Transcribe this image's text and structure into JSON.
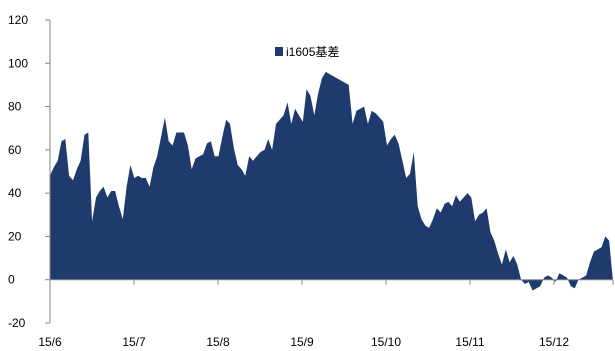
{
  "chart_data": {
    "type": "area",
    "title": "",
    "xlabel": "",
    "ylabel": "",
    "ylim": [
      -20,
      120
    ],
    "y_ticks": [
      "120",
      "100",
      "80",
      "60",
      "40",
      "20",
      "0",
      "-20"
    ],
    "x_ticks": [
      "15/6",
      "15/7",
      "15/8",
      "15/9",
      "15/10",
      "15/11",
      "15/12"
    ],
    "grid": false,
    "legend_position": "top-center",
    "series": [
      {
        "name": "i1605基差",
        "color": "#1f3b6e",
        "values": [
          48,
          52,
          55,
          64,
          65,
          48,
          46,
          51,
          55,
          67,
          68,
          27,
          38,
          41,
          43,
          38,
          41,
          41,
          34,
          28,
          43,
          53,
          47,
          48,
          47,
          47,
          43,
          52,
          57,
          66,
          75,
          64,
          62,
          68,
          68,
          68,
          62,
          51,
          56,
          57,
          58,
          63,
          64,
          57,
          57,
          66,
          74,
          72,
          61,
          53,
          51,
          48,
          57,
          55,
          57,
          59,
          60,
          65,
          60,
          72,
          74,
          76,
          82,
          72,
          79,
          76,
          73,
          88,
          85,
          76,
          86,
          93,
          96,
          95,
          94,
          93,
          92,
          91,
          90,
          72,
          78,
          79,
          80,
          72,
          78,
          77,
          75,
          73,
          62,
          65,
          67,
          63,
          55,
          47,
          49,
          59,
          34,
          28,
          25,
          24,
          28,
          33,
          31,
          35,
          36,
          34,
          39,
          36,
          38,
          40,
          38,
          27,
          30,
          31,
          33,
          22,
          18,
          12,
          7,
          14,
          8,
          11,
          7,
          0,
          -2,
          -1,
          -5,
          -4,
          -3,
          1,
          2,
          1,
          -1,
          3,
          2,
          1,
          -3,
          -4,
          0,
          1,
          2,
          8,
          13,
          14,
          15,
          20,
          18,
          -1
        ]
      }
    ]
  }
}
